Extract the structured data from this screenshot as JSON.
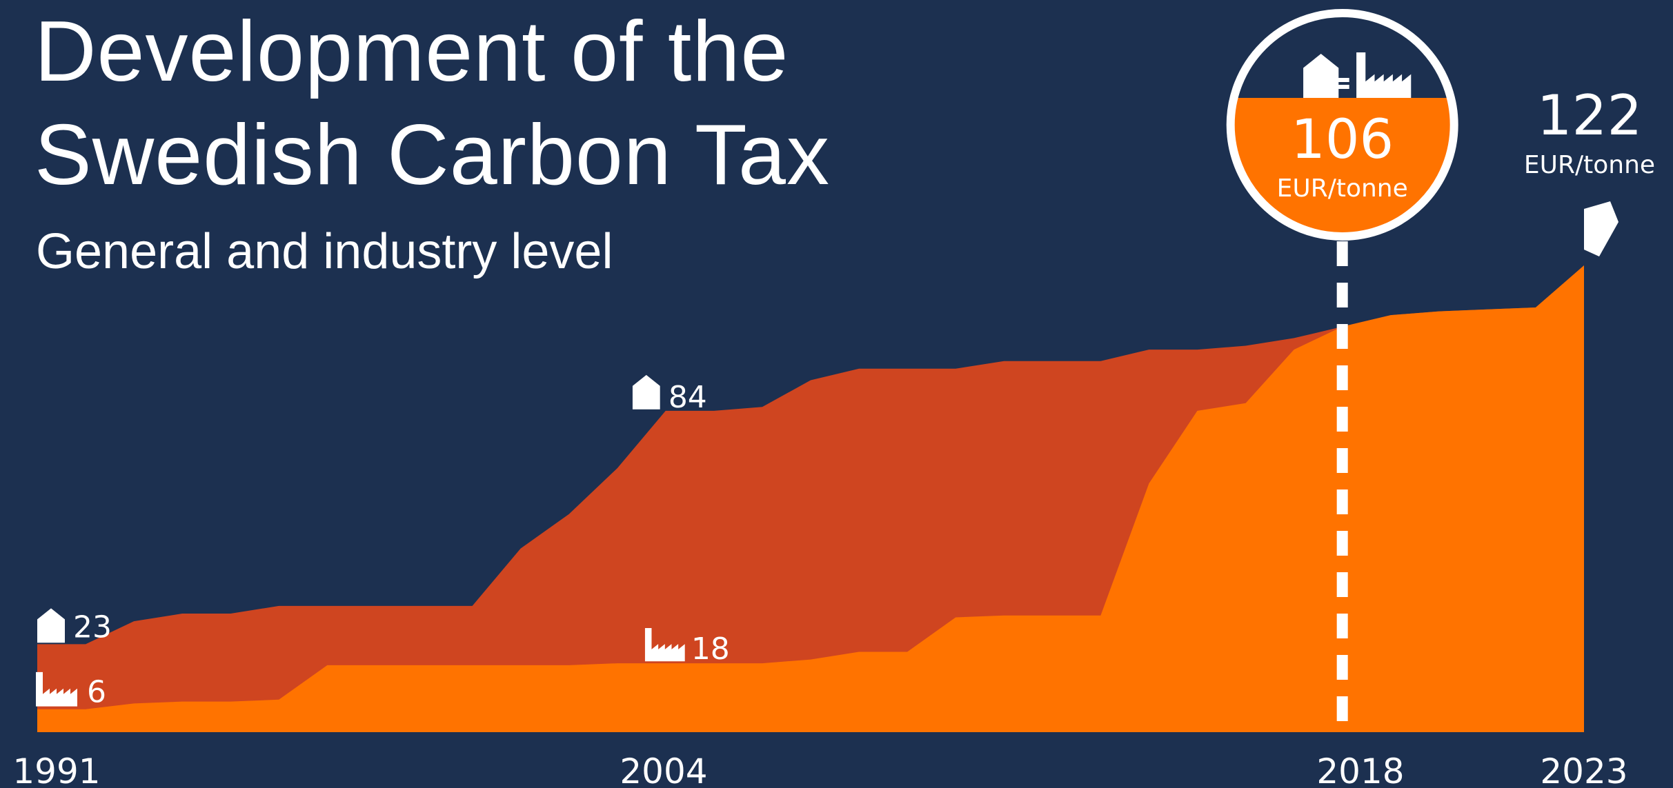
{
  "header": {
    "title_line1": "Development of the",
    "title_line2": "Swedish Carbon Tax",
    "subtitle": "General and industry level"
  },
  "chart_data": {
    "type": "area",
    "title": "Development of the Swedish Carbon Tax",
    "subtitle": "General and industry level",
    "x_ticks": [
      "1991",
      "2004",
      "2018",
      "2023"
    ],
    "xlim": [
      1991,
      2023
    ],
    "ylim": [
      0,
      122
    ],
    "unit": "EUR/tonne",
    "series": [
      {
        "key": "general",
        "color": "#cf4520",
        "icon": "house-icon",
        "x": [
          1991,
          1992,
          1993,
          1994,
          1995,
          1996,
          1997,
          1998,
          1999,
          2000,
          2001,
          2002,
          2003,
          2004,
          2005,
          2006,
          2007,
          2008,
          2009,
          2010,
          2011,
          2012,
          2013,
          2014,
          2015,
          2016,
          2017,
          2018,
          2019,
          2020,
          2021,
          2022,
          2023
        ],
        "values": [
          23,
          23,
          29,
          31,
          31,
          33,
          33,
          33,
          33,
          33,
          48,
          57,
          69,
          84,
          84,
          85,
          92,
          95,
          95,
          95,
          97,
          97,
          97,
          100,
          100,
          101,
          103,
          106,
          109,
          110,
          110.5,
          111,
          122
        ]
      },
      {
        "key": "industry",
        "color": "#ff7300",
        "icon": "factory-icon",
        "x": [
          1991,
          1992,
          1993,
          1994,
          1995,
          1996,
          1997,
          1998,
          1999,
          2000,
          2001,
          2002,
          2003,
          2004,
          2005,
          2006,
          2007,
          2008,
          2009,
          2010,
          2011,
          2012,
          2013,
          2014,
          2015,
          2016,
          2017,
          2018,
          2019,
          2020,
          2021,
          2022,
          2023
        ],
        "values": [
          6,
          6,
          7.5,
          8,
          8,
          8.5,
          17.5,
          17.5,
          17.5,
          17.5,
          17.5,
          17.5,
          18,
          18,
          18,
          18,
          19,
          21,
          21,
          30,
          30.5,
          30.5,
          30.5,
          65,
          84,
          86,
          100,
          106,
          109,
          110,
          110.5,
          111,
          122
        ]
      }
    ],
    "annotations": [
      {
        "x": 1991,
        "series": "general",
        "label": "23"
      },
      {
        "x": 1991,
        "series": "industry",
        "label": "6"
      },
      {
        "x": 2004,
        "series": "general",
        "label": "84"
      },
      {
        "x": 2004,
        "series": "industry",
        "label": "18"
      },
      {
        "x": 2018,
        "label": "106",
        "unit": "EUR/tonne",
        "note": "general = industry"
      },
      {
        "x": 2023,
        "label": "122",
        "unit": "EUR/tonne"
      }
    ]
  }
}
